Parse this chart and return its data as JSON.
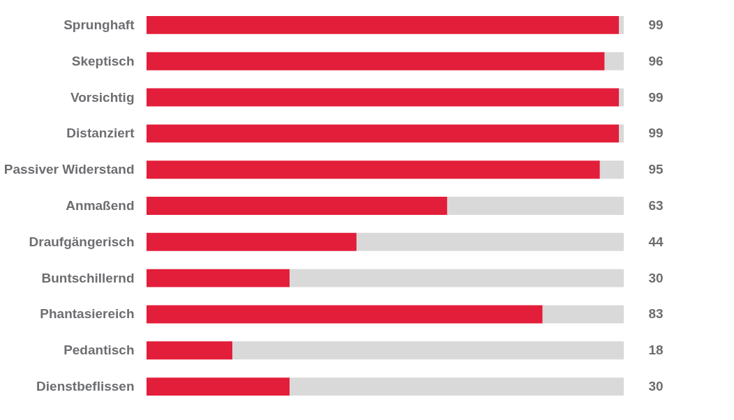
{
  "chart_data": {
    "type": "bar",
    "orientation": "horizontal",
    "stacked": true,
    "categories": [
      "Sprunghaft",
      "Skeptisch",
      "Vorsichtig",
      "Distanziert",
      "Passiver Widerstand",
      "Anmaßend",
      "Draufgängerisch",
      "Buntschillernd",
      "Phantasiereich",
      "Pedantisch",
      "Dienstbeflissen"
    ],
    "series": [
      {
        "color": "#e31e3a",
        "values": [
          99,
          96,
          99,
          99,
          95,
          63,
          44,
          30,
          83,
          18,
          30
        ],
        "value_labels": [
          "99",
          "96",
          "99",
          "99",
          "95",
          "63",
          "44",
          "30",
          "83",
          "18",
          "30"
        ]
      },
      {
        "color": "#d9d9d9",
        "values": [
          1,
          4,
          1,
          1,
          5,
          37,
          56,
          70,
          17,
          82,
          70
        ]
      }
    ],
    "xlim": [
      0,
      100
    ],
    "tick_labels": "y"
  }
}
